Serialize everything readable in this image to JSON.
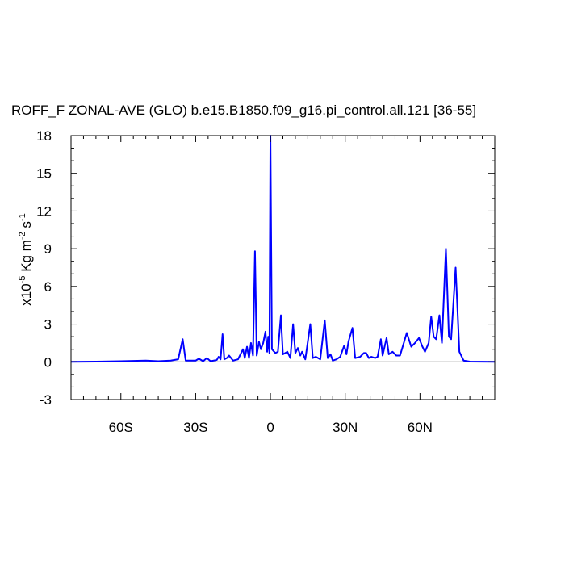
{
  "chart_data": {
    "type": "line",
    "title": "ROFF_F ZONAL-AVE (GLO) b.e15.B1850.f09_g16.pi_control.all.121 [36-55]",
    "ylabel": [
      {
        "text": "x10"
      },
      {
        "text": "-5",
        "sup": true
      },
      {
        "text": " Kg m"
      },
      {
        "text": "-2",
        "sup": true
      },
      {
        "text": " s"
      },
      {
        "text": "-1",
        "sup": true
      }
    ],
    "xlim": [
      -80,
      90
    ],
    "ylim": [
      -3,
      18
    ],
    "xticks": [
      {
        "value": -60,
        "label": "60S"
      },
      {
        "value": -30,
        "label": "30S"
      },
      {
        "value": 0,
        "label": "0"
      },
      {
        "value": 30,
        "label": "30N"
      },
      {
        "value": 60,
        "label": "60N"
      }
    ],
    "yticks": [
      -3,
      0,
      3,
      6,
      9,
      12,
      15,
      18
    ],
    "xminorticks": [
      -75,
      -70,
      -65,
      -55,
      -50,
      -45,
      -40,
      -35,
      -25,
      -20,
      -15,
      -10,
      -5,
      5,
      10,
      15,
      20,
      25,
      35,
      40,
      45,
      50,
      55,
      65,
      70,
      75,
      80,
      85
    ],
    "yminorticks": [
      -2,
      -1,
      1,
      2,
      4,
      5,
      7,
      8,
      10,
      11,
      13,
      14,
      16,
      17
    ],
    "ref_line": 0,
    "series": [
      {
        "color": "#0000ff",
        "x": [
          -80,
          -70,
          -60,
          -50,
          -45,
          -40,
          -37,
          -35.2,
          -34,
          -30,
          -28.7,
          -27,
          -25.5,
          -24,
          -21.5,
          -20.8,
          -20,
          -19.2,
          -18.5,
          -17.5,
          -16.6,
          -15,
          -13,
          -11,
          -10.3,
          -9.4,
          -8.6,
          -7.8,
          -7,
          -6.2,
          -5.5,
          -4.6,
          -3.8,
          -2.9,
          -2,
          -1.3,
          -0.9,
          -0.4,
          0,
          0.6,
          2,
          3,
          4.2,
          5,
          6.8,
          8,
          9.1,
          10,
          11,
          12,
          12.7,
          14,
          16,
          17,
          18.2,
          20,
          21.8,
          23,
          24.1,
          25,
          26.5,
          28,
          29.6,
          30.5,
          31.3,
          32.9,
          34,
          36,
          37.5,
          38.4,
          39.5,
          40.5,
          42,
          43,
          44.3,
          45,
          46.6,
          47.5,
          49,
          50.5,
          52,
          54.7,
          56.5,
          58,
          59.6,
          61,
          62,
          63.5,
          64.5,
          65.5,
          66.5,
          67.8,
          68.8,
          70.4,
          71.6,
          72.5,
          74.3,
          75.8,
          77.5,
          80,
          90
        ],
        "values": [
          0,
          0.02,
          0.05,
          0.1,
          0.05,
          0.1,
          0.2,
          1.8,
          0.1,
          0.1,
          0.25,
          0.05,
          0.3,
          0.05,
          0.15,
          0.4,
          0.2,
          2.2,
          0.2,
          0.3,
          0.5,
          0.1,
          0.2,
          1.0,
          0.3,
          1.2,
          0.3,
          1.5,
          0.5,
          8.8,
          0.5,
          1.6,
          1.0,
          1.5,
          2.4,
          0.8,
          2.0,
          0.7,
          18,
          1.0,
          0.7,
          0.8,
          3.7,
          0.6,
          0.8,
          0.3,
          3.0,
          0.7,
          1.1,
          0.5,
          0.8,
          0.2,
          3.0,
          0.3,
          0.4,
          0.2,
          3.3,
          0.3,
          0.6,
          0.1,
          0.2,
          0.4,
          1.3,
          0.6,
          1.6,
          2.7,
          0.3,
          0.4,
          0.7,
          0.7,
          0.3,
          0.4,
          0.3,
          0.4,
          1.8,
          0.5,
          1.9,
          0.6,
          0.8,
          0.5,
          0.5,
          2.3,
          1.2,
          1.5,
          1.9,
          1.2,
          0.8,
          1.5,
          3.6,
          2.0,
          1.8,
          3.7,
          1.5,
          9.0,
          2.0,
          1.8,
          7.5,
          0.8,
          0.1,
          0.02,
          0
        ]
      }
    ]
  }
}
